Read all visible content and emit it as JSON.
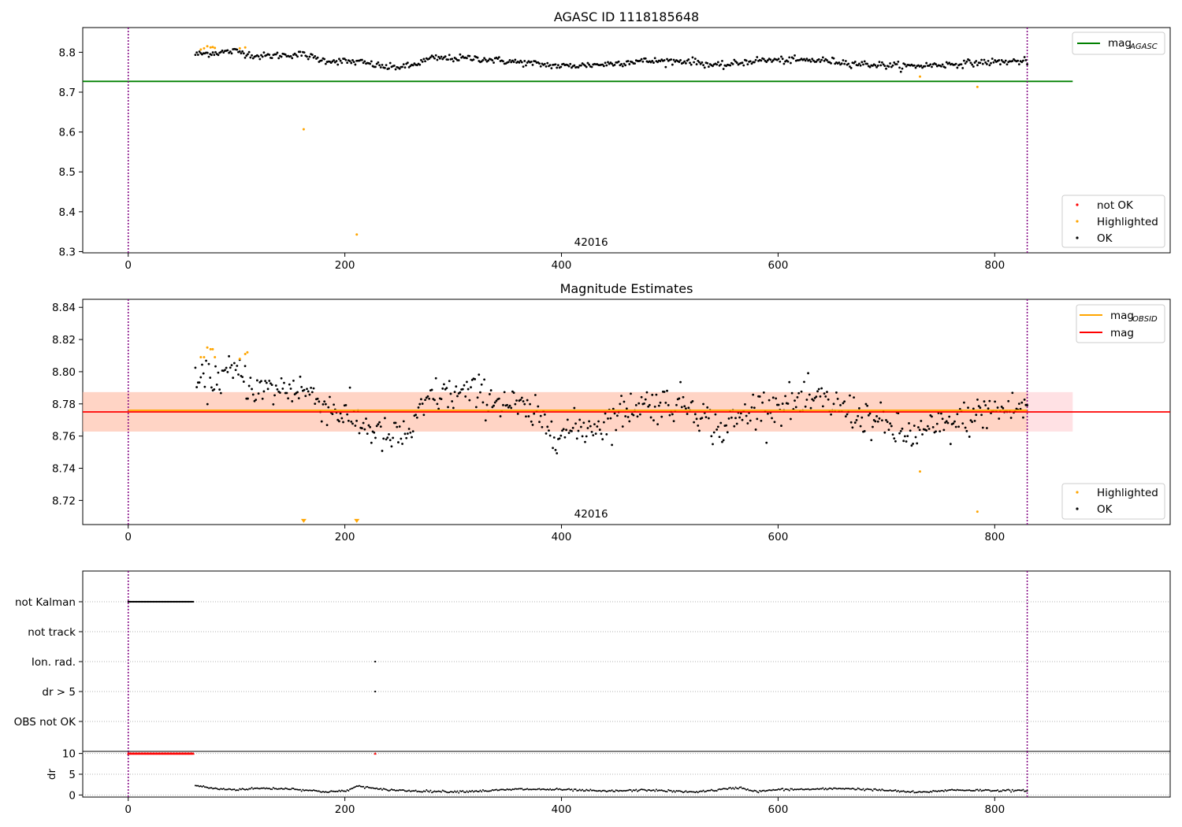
{
  "chart_data": [
    {
      "type": "scatter",
      "title": "AGASC ID 1118185648",
      "xlim": [
        -42,
        962
      ],
      "ylim": [
        8.297,
        8.862
      ],
      "xticks": [
        0,
        200,
        400,
        600,
        800
      ],
      "yticks": [
        8.3,
        8.4,
        8.5,
        8.6,
        8.7,
        8.8
      ],
      "ytick_labels": [
        "8.3",
        "8.4",
        "8.5",
        "8.6",
        "8.7",
        "8.8"
      ],
      "xtick_labels": [
        "0",
        "200",
        "400",
        "600",
        "800"
      ],
      "vlines": [
        0,
        830
      ],
      "obsid_label": "42016",
      "obsid_x": 415,
      "hline": {
        "name": "mag_AGASC",
        "value": 8.727,
        "x_range": [
          -42,
          872
        ],
        "color": "#008000"
      },
      "legend_lines": [
        {
          "label": "mag",
          "sub": "AGASC",
          "color": "#008000"
        }
      ],
      "legend_markers": [
        {
          "label": "not OK",
          "color": "#ff0000"
        },
        {
          "label": "Highlighted",
          "color": "#ffa500"
        },
        {
          "label": "OK",
          "color": "#000000"
        }
      ],
      "series": [
        {
          "name": "OK",
          "color": "#000000",
          "trend": [
            [
              62,
              8.795
            ],
            [
              100,
              8.803
            ],
            [
              120,
              8.79
            ],
            [
              160,
              8.795
            ],
            [
              180,
              8.78
            ],
            [
              215,
              8.775
            ],
            [
              240,
              8.762
            ],
            [
              260,
              8.765
            ],
            [
              280,
              8.785
            ],
            [
              320,
              8.785
            ],
            [
              360,
              8.775
            ],
            [
              400,
              8.765
            ],
            [
              440,
              8.77
            ],
            [
              470,
              8.778
            ],
            [
              520,
              8.778
            ],
            [
              545,
              8.765
            ],
            [
              580,
              8.78
            ],
            [
              640,
              8.78
            ],
            [
              680,
              8.77
            ],
            [
              720,
              8.765
            ],
            [
              760,
              8.77
            ],
            [
              790,
              8.775
            ],
            [
              830,
              8.778
            ]
          ],
          "x_range": [
            62,
            830
          ],
          "count": 620,
          "jitter": 0.013
        },
        {
          "name": "Highlighted",
          "color": "#ffa500",
          "points": [
            [
              67,
              8.807
            ],
            [
              70,
              8.81
            ],
            [
              73,
              8.815
            ],
            [
              76,
              8.812
            ],
            [
              78,
              8.813
            ],
            [
              80,
              8.811
            ],
            [
              103,
              8.81
            ],
            [
              108,
              8.812
            ],
            [
              162,
              8.607
            ],
            [
              211,
              8.343
            ],
            [
              731,
              8.739
            ],
            [
              784,
              8.713
            ]
          ]
        },
        {
          "name": "not OK",
          "color": "#ff0000",
          "points": []
        }
      ]
    },
    {
      "type": "scatter",
      "title": "Magnitude Estimates",
      "xlim": [
        -42,
        962
      ],
      "ylim": [
        8.705,
        8.845
      ],
      "xticks": [
        0,
        200,
        400,
        600,
        800
      ],
      "yticks": [
        8.72,
        8.74,
        8.76,
        8.78,
        8.8,
        8.82,
        8.84
      ],
      "ytick_labels": [
        "8.72",
        "8.74",
        "8.76",
        "8.78",
        "8.80",
        "8.82",
        "8.84"
      ],
      "xtick_labels": [
        "0",
        "200",
        "400",
        "600",
        "800"
      ],
      "vlines": [
        0,
        830
      ],
      "obsid_label": "42016",
      "obsid_x": 415,
      "band": {
        "low": 8.7628,
        "high": 8.7873,
        "x_range": [
          -42,
          872
        ],
        "color": "#ff9aa5"
      },
      "orange_band": {
        "low": 8.7628,
        "high": 8.7873,
        "x_range": [
          -42,
          830
        ],
        "color": "#ffc6a0"
      },
      "hline_mag": {
        "value": 8.775,
        "color": "#ff0000"
      },
      "hline_obsid": {
        "value": 8.776,
        "x_range": [
          0,
          830
        ],
        "color": "#ffa500"
      },
      "legend_lines": [
        {
          "label": "mag",
          "sub": "OBSID",
          "color": "#ffa500"
        },
        {
          "label": "mag",
          "sub": "",
          "color": "#ff0000"
        }
      ],
      "legend_markers": [
        {
          "label": "Highlighted",
          "color": "#ffa500"
        },
        {
          "label": "OK",
          "color": "#000000"
        }
      ],
      "series": [
        {
          "name": "OK",
          "color": "#000000",
          "trend": [
            [
              62,
              8.792
            ],
            [
              100,
              8.8
            ],
            [
              120,
              8.788
            ],
            [
              160,
              8.79
            ],
            [
              180,
              8.78
            ],
            [
              215,
              8.768
            ],
            [
              240,
              8.758
            ],
            [
              260,
              8.762
            ],
            [
              280,
              8.785
            ],
            [
              320,
              8.787
            ],
            [
              360,
              8.778
            ],
            [
              400,
              8.762
            ],
            [
              440,
              8.768
            ],
            [
              470,
              8.78
            ],
            [
              520,
              8.78
            ],
            [
              545,
              8.763
            ],
            [
              580,
              8.778
            ],
            [
              640,
              8.782
            ],
            [
              680,
              8.772
            ],
            [
              720,
              8.76
            ],
            [
              760,
              8.767
            ],
            [
              790,
              8.775
            ],
            [
              830,
              8.778
            ]
          ],
          "x_range": [
            62,
            830
          ],
          "count": 620,
          "jitter": 0.017
        },
        {
          "name": "Highlighted",
          "color": "#ffa500",
          "points": [
            [
              67,
              8.809
            ],
            [
              70,
              8.809
            ],
            [
              73,
              8.815
            ],
            [
              76,
              8.814
            ],
            [
              78,
              8.814
            ],
            [
              80,
              8.809
            ],
            [
              103,
              8.808
            ],
            [
              108,
              8.811
            ],
            [
              110,
              8.812
            ],
            [
              731,
              8.738
            ],
            [
              784,
              8.713
            ]
          ]
        },
        {
          "name": "Highlighted-offscale",
          "color": "#ffa500",
          "marker": "triangle-down",
          "points": [
            [
              162,
              8.7065
            ],
            [
              211,
              8.7065
            ]
          ]
        }
      ]
    },
    {
      "type": "scatter",
      "title": "",
      "xlim": [
        -42,
        962
      ],
      "xticks": [
        0,
        200,
        400,
        600,
        800
      ],
      "xtick_labels": [
        "0",
        "200",
        "400",
        "600",
        "800"
      ],
      "vlines": [
        0,
        830
      ],
      "flag_rows": [
        "not Kalman",
        "not track",
        "Ion. rad.",
        "dr > 5",
        "OBS not OK"
      ],
      "flags": [
        {
          "row": "not Kalman",
          "x_range": [
            0,
            60
          ],
          "color": "#000000"
        },
        {
          "row": "Ion. rad.",
          "x": 228,
          "color": "#000000"
        },
        {
          "row": "dr > 5",
          "x": 228,
          "color": "#000000"
        }
      ],
      "dr_panel": {
        "ylabel": "dr",
        "ylim": [
          -0.5,
          10.5
        ],
        "yticks": [
          0,
          5,
          10
        ],
        "ytick_labels": [
          "0",
          "5",
          "10"
        ],
        "clipped": {
          "x_range": [
            0,
            60
          ],
          "value": 10,
          "color": "#ff0000"
        },
        "clipped_point": {
          "x": 228,
          "value": 10,
          "color": "#ff0000"
        },
        "trend": [
          [
            62,
            2.3
          ],
          [
            80,
            1.5
          ],
          [
            100,
            1.3
          ],
          [
            120,
            1.6
          ],
          [
            150,
            1.5
          ],
          [
            180,
            0.8
          ],
          [
            200,
            0.9
          ],
          [
            213,
            2.2
          ],
          [
            230,
            1.4
          ],
          [
            260,
            1.0
          ],
          [
            300,
            0.8
          ],
          [
            330,
            1.0
          ],
          [
            360,
            1.4
          ],
          [
            400,
            1.3
          ],
          [
            440,
            0.9
          ],
          [
            480,
            1.2
          ],
          [
            520,
            0.7
          ],
          [
            540,
            1.1
          ],
          [
            565,
            1.8
          ],
          [
            580,
            0.8
          ],
          [
            600,
            1.3
          ],
          [
            640,
            1.4
          ],
          [
            660,
            1.6
          ],
          [
            700,
            1.1
          ],
          [
            730,
            0.6
          ],
          [
            760,
            1.2
          ],
          [
            800,
            1.1
          ],
          [
            830,
            1.0
          ]
        ],
        "x_range": [
          62,
          830
        ],
        "count": 620
      }
    }
  ]
}
